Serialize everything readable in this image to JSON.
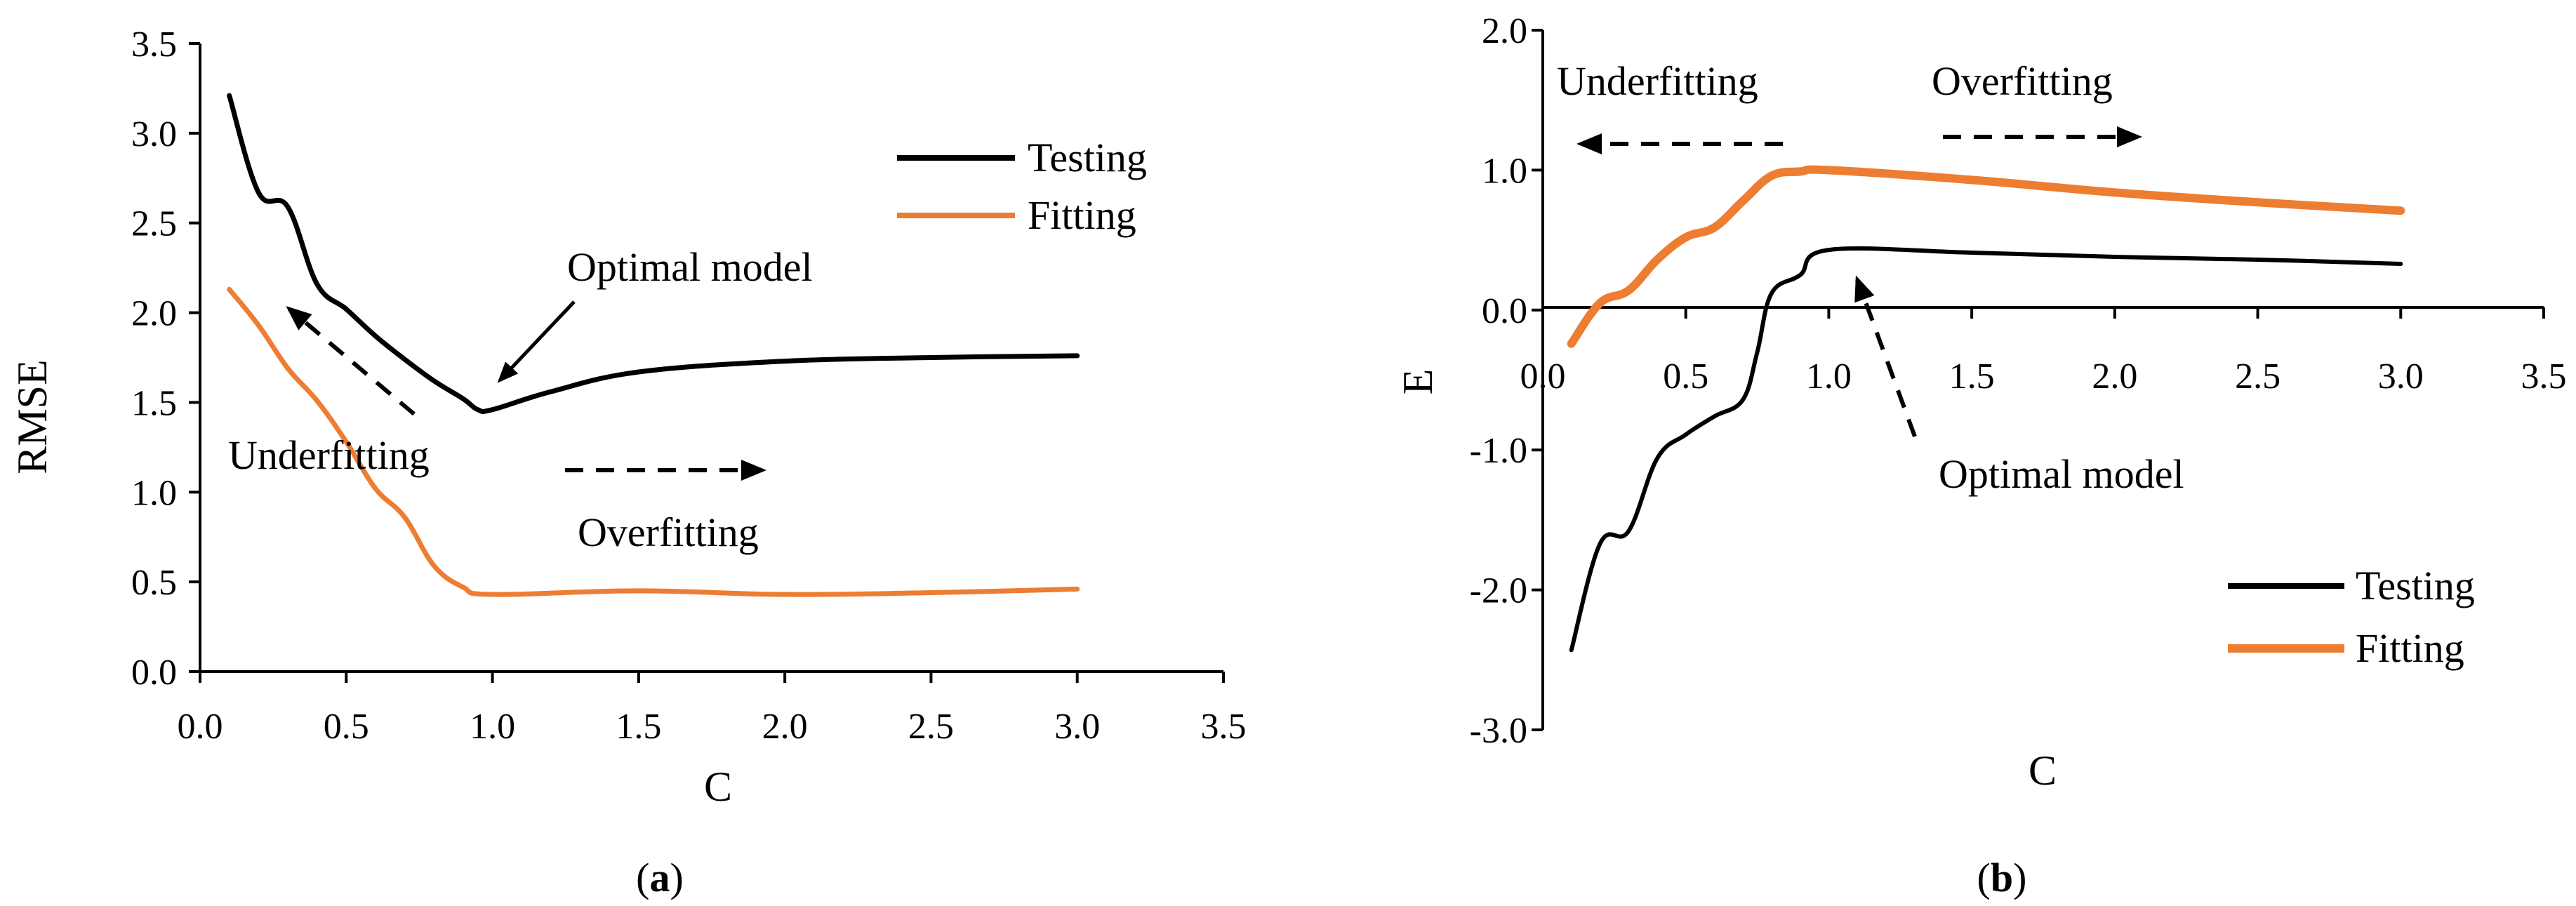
{
  "colors": {
    "testing": "#000000",
    "fitting": "#ED7D31",
    "axis": "#000000"
  },
  "chart_data": [
    {
      "id": "a",
      "type": "line",
      "panel_label": "a",
      "xlabel": "C",
      "ylabel": "RMSE",
      "xlim": [
        0.0,
        3.5
      ],
      "ylim": [
        0.0,
        3.5
      ],
      "x_ticks": [
        0.0,
        0.5,
        1.0,
        1.5,
        2.0,
        2.5,
        3.0,
        3.5
      ],
      "x_tick_labels": [
        "0.0",
        "0.5",
        "1.0",
        "1.5",
        "2.0",
        "2.5",
        "3.0",
        "3.5"
      ],
      "y_ticks": [
        0.0,
        0.5,
        1.0,
        1.5,
        2.0,
        2.5,
        3.0,
        3.5
      ],
      "y_tick_labels": [
        "0.0",
        "0.5",
        "1.0",
        "1.5",
        "2.0",
        "2.5",
        "3.0",
        "3.5"
      ],
      "legend": [
        "Testing",
        "Fitting"
      ],
      "legend_position": "top-right",
      "series": [
        {
          "name": "Testing",
          "x": [
            0.1,
            0.2,
            0.3,
            0.4,
            0.5,
            0.6,
            0.7,
            0.8,
            0.9,
            0.95,
            1.0,
            1.2,
            1.5,
            2.0,
            2.5,
            3.0
          ],
          "y": [
            3.21,
            2.67,
            2.59,
            2.16,
            2.02,
            1.87,
            1.74,
            1.62,
            1.52,
            1.46,
            1.46,
            1.56,
            1.67,
            1.73,
            1.75,
            1.76
          ]
        },
        {
          "name": "Fitting",
          "x": [
            0.1,
            0.2,
            0.3,
            0.4,
            0.5,
            0.6,
            0.7,
            0.8,
            0.9,
            1.0,
            1.5,
            2.0,
            2.5,
            3.0
          ],
          "y": [
            2.13,
            1.93,
            1.69,
            1.51,
            1.28,
            1.02,
            0.86,
            0.59,
            0.47,
            0.43,
            0.45,
            0.43,
            0.44,
            0.46
          ]
        }
      ],
      "annotations": [
        {
          "text": "Optimal model"
        },
        {
          "text": "Underfitting"
        },
        {
          "text": "Overfitting"
        }
      ]
    },
    {
      "id": "b",
      "type": "line",
      "panel_label": "b",
      "xlabel": "C",
      "ylabel": "E",
      "xlim": [
        0.0,
        3.5
      ],
      "ylim": [
        -3.0,
        2.0
      ],
      "x_ticks": [
        0.0,
        0.5,
        1.0,
        1.5,
        2.0,
        2.5,
        3.0,
        3.5
      ],
      "x_tick_labels": [
        "0.0",
        "0.5",
        "1.0",
        "1.5",
        "2.0",
        "2.5",
        "3.0",
        "3.5"
      ],
      "y_ticks": [
        -3.0,
        -2.0,
        -1.0,
        0.0,
        1.0,
        2.0
      ],
      "y_tick_labels": [
        "-3.0",
        "-2.0",
        "-1.0",
        "0.0",
        "1.0",
        "2.0"
      ],
      "legend": [
        "Testing",
        "Fitting"
      ],
      "legend_position": "bottom-right",
      "series": [
        {
          "name": "Testing",
          "x": [
            0.1,
            0.2,
            0.3,
            0.4,
            0.5,
            0.6,
            0.7,
            0.75,
            0.8,
            0.9,
            1.0,
            1.5,
            2.0,
            2.5,
            3.0
          ],
          "y": [
            -2.43,
            -1.67,
            -1.58,
            -1.06,
            -0.89,
            -0.76,
            -0.64,
            -0.3,
            0.12,
            0.25,
            0.43,
            0.41,
            0.38,
            0.36,
            0.33
          ]
        },
        {
          "name": "Fitting",
          "x": [
            0.1,
            0.2,
            0.3,
            0.4,
            0.5,
            0.6,
            0.7,
            0.8,
            0.9,
            1.0,
            1.5,
            2.0,
            2.5,
            3.0
          ],
          "y": [
            -0.24,
            0.05,
            0.14,
            0.36,
            0.52,
            0.59,
            0.78,
            0.96,
            0.99,
            1.0,
            0.93,
            0.84,
            0.77,
            0.71
          ]
        }
      ],
      "annotations": [
        {
          "text": "Underfitting"
        },
        {
          "text": "Overfitting"
        },
        {
          "text": "Optimal model"
        }
      ]
    }
  ]
}
